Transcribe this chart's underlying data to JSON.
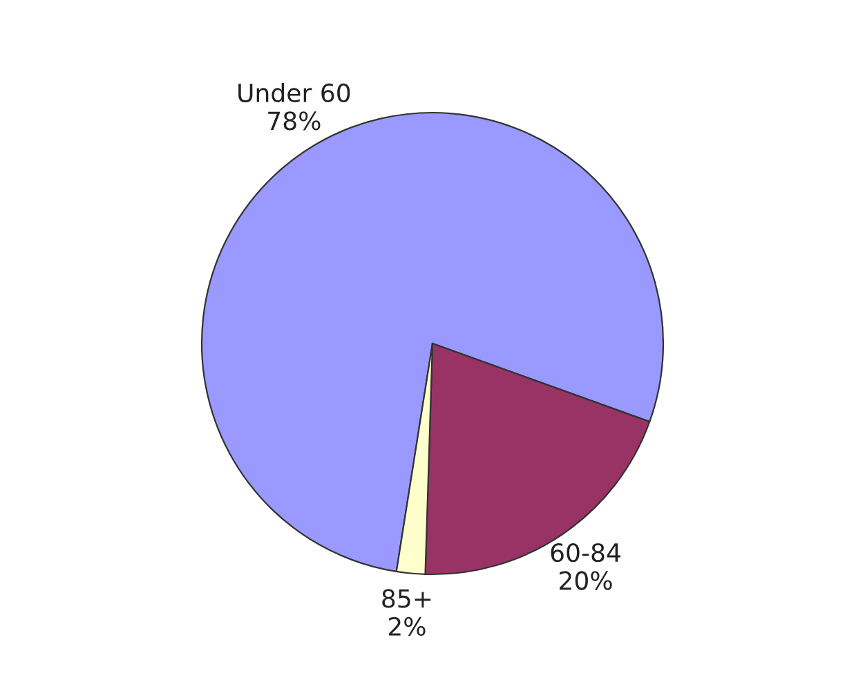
{
  "chart_data": {
    "type": "pie",
    "categories": [
      "Under 60",
      "60-84",
      "85+"
    ],
    "values": [
      78,
      20,
      2
    ],
    "value_labels": [
      "78%",
      "20%",
      "2%"
    ],
    "colors": [
      "#9999ff",
      "#993366",
      "#ffffcc"
    ],
    "legend": false
  }
}
